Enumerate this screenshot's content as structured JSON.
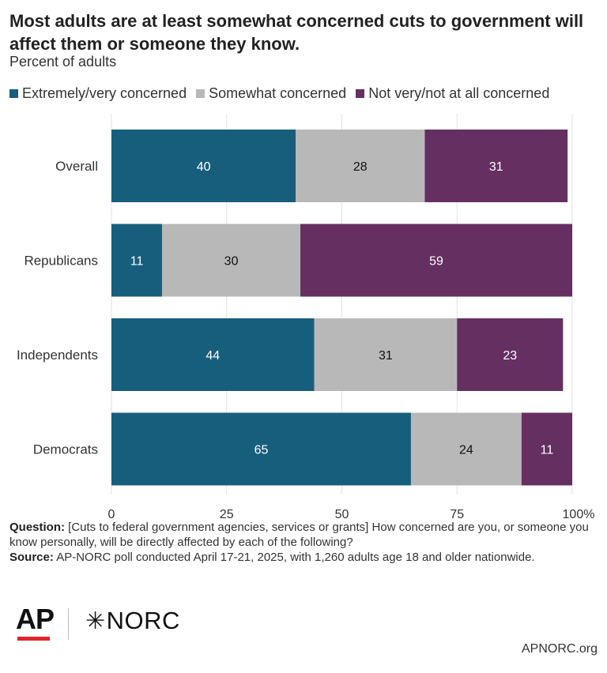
{
  "title": "Most adults are at least somewhat concerned cuts to government will affect them or someone they know.",
  "subtitle": "Percent of adults",
  "legend": [
    {
      "label": "Extremely/very concerned",
      "color": "#175e7c"
    },
    {
      "label": "Somewhat concerned",
      "color": "#b8b8b8"
    },
    {
      "label": "Not very/not at all concerned",
      "color": "#652f62"
    }
  ],
  "chart_data": {
    "type": "bar",
    "orientation": "horizontal",
    "stacked": true,
    "categories": [
      "Overall",
      "Republicans",
      "Independents",
      "Democrats"
    ],
    "series": [
      {
        "name": "Extremely/very concerned",
        "color": "#175e7c",
        "label_color": "#ffffff",
        "values": [
          40,
          11,
          44,
          65
        ]
      },
      {
        "name": "Somewhat concerned",
        "color": "#b8b8b8",
        "label_color": "#111111",
        "values": [
          28,
          30,
          31,
          24
        ]
      },
      {
        "name": "Not very/not at all concerned",
        "color": "#652f62",
        "label_color": "#ffffff",
        "values": [
          31,
          59,
          23,
          11
        ]
      }
    ],
    "xlim": [
      0,
      100
    ],
    "xticks": [
      0,
      25,
      50,
      75,
      100
    ],
    "xtick_labels": [
      "0",
      "25",
      "50",
      "75",
      "100%"
    ],
    "grid": true
  },
  "footnote": {
    "question_label": "Question:",
    "question_text": " [Cuts to federal government agencies, services or grants] How concerned are you, or someone you know personally, will be directly affected by each of the following?",
    "source_label": "Source:",
    "source_text": " AP-NORC poll conducted April 17-21, 2025, with 1,260 adults age 18 and older nationwide."
  },
  "logos": {
    "ap": "AP",
    "norc": "NORC",
    "norc_symbol": "✳"
  },
  "site": "APNORC.org"
}
